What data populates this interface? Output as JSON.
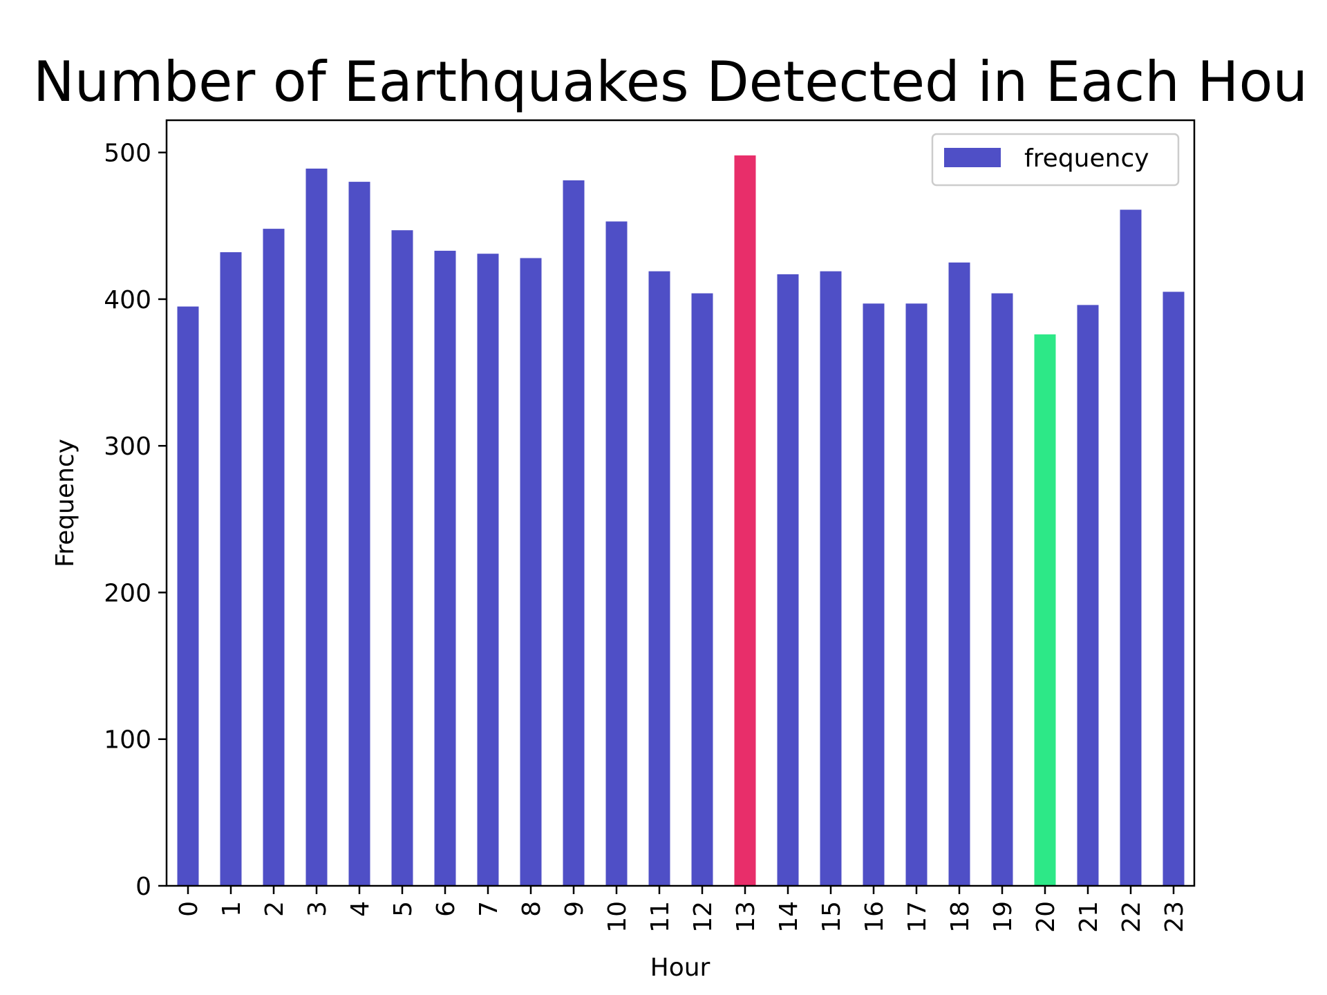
{
  "chart_data": {
    "type": "bar",
    "title": "Number of Earthquakes Detected in Each Hou",
    "xlabel": "Hour",
    "ylabel": "Frequency",
    "categories": [
      "0",
      "1",
      "2",
      "3",
      "4",
      "5",
      "6",
      "7",
      "8",
      "9",
      "10",
      "11",
      "12",
      "13",
      "14",
      "15",
      "16",
      "17",
      "18",
      "19",
      "20",
      "21",
      "22",
      "23"
    ],
    "series": [
      {
        "name": "frequency",
        "values": [
          395,
          432,
          448,
          489,
          480,
          447,
          433,
          431,
          428,
          481,
          453,
          419,
          404,
          498,
          417,
          419,
          397,
          397,
          425,
          404,
          376,
          396,
          461,
          405
        ]
      }
    ],
    "ylim": [
      0,
      522
    ],
    "yticks": [
      "0",
      "100",
      "200",
      "300",
      "400",
      "500"
    ],
    "colors": {
      "default": "#4f4fc6",
      "max": "#e82e6a",
      "min": "#2de887"
    },
    "highlight": {
      "max_index": 13,
      "min_index": 20
    },
    "legend": {
      "position": "top-right",
      "label": "frequency"
    },
    "grid": false
  }
}
